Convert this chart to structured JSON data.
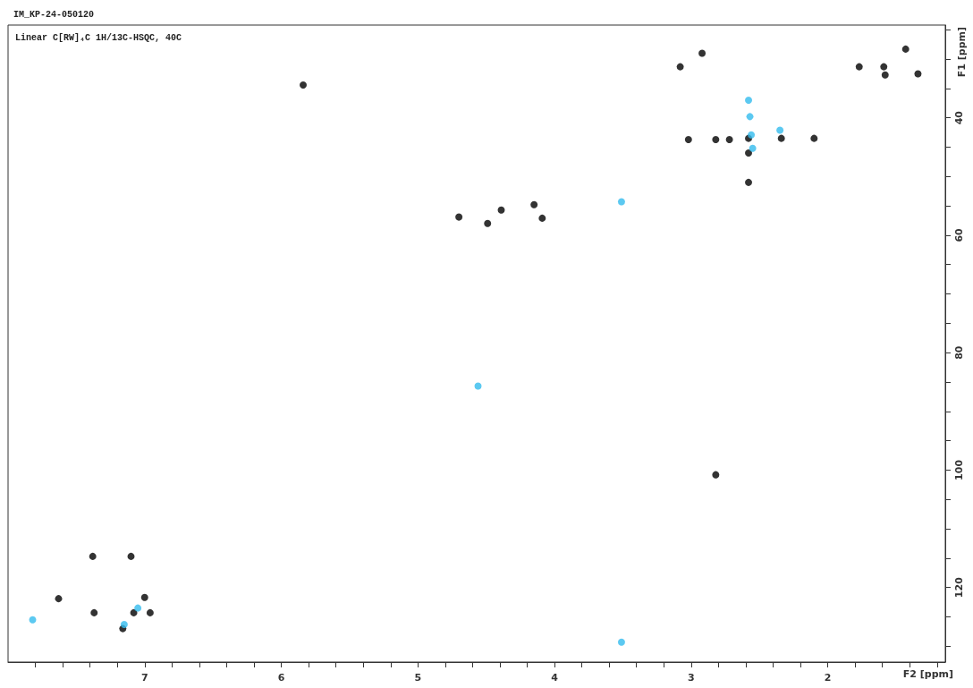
{
  "chart_data": {
    "type": "scatter",
    "title": "IM_KP-24-050120",
    "subtitle": "Linear C[RW]₄C 1H/13C-HSQC, 40C",
    "xlabel": "F2 [ppm]",
    "ylabel": "F1 [ppm]",
    "xlim": [
      8.0,
      1.14
    ],
    "ylim": [
      132.7,
      24.2
    ],
    "xticks": [
      {
        "value": 7.8,
        "label": null
      },
      {
        "value": 7.6,
        "label": null
      },
      {
        "value": 7.4,
        "label": null
      },
      {
        "value": 7.2,
        "label": null
      },
      7,
      {
        "value": 6.8,
        "label": null
      },
      {
        "value": 6.6,
        "label": null
      },
      {
        "value": 6.4,
        "label": null
      },
      {
        "value": 6.2,
        "label": null
      },
      6,
      {
        "value": 5.8,
        "label": null
      },
      {
        "value": 5.6,
        "label": null
      },
      {
        "value": 5.4,
        "label": null
      },
      {
        "value": 5.2,
        "label": null
      },
      5,
      {
        "value": 4.8,
        "label": null
      },
      {
        "value": 4.6,
        "label": null
      },
      {
        "value": 4.4,
        "label": null
      },
      {
        "value": 4.2,
        "label": null
      },
      4,
      {
        "value": 3.8,
        "label": null
      },
      {
        "value": 3.6,
        "label": null
      },
      {
        "value": 3.4,
        "label": null
      },
      {
        "value": 3.2,
        "label": null
      },
      3,
      {
        "value": 2.8,
        "label": null
      },
      {
        "value": 2.6,
        "label": null
      },
      {
        "value": 2.4,
        "label": null
      },
      {
        "value": 2.2,
        "label": null
      },
      2,
      {
        "value": 1.8,
        "label": null
      },
      {
        "value": 1.6,
        "label": null
      },
      {
        "value": 1.4,
        "label": null
      },
      {
        "value": 1.2,
        "label": null
      }
    ],
    "yticks": [
      {
        "value": 25,
        "label": null
      },
      {
        "value": 30,
        "label": null
      },
      {
        "value": 35,
        "label": null
      },
      40,
      {
        "value": 45,
        "label": null
      },
      {
        "value": 50,
        "label": null
      },
      {
        "value": 55,
        "label": null
      },
      60,
      {
        "value": 65,
        "label": null
      },
      {
        "value": 70,
        "label": null
      },
      {
        "value": 75,
        "label": null
      },
      80,
      {
        "value": 85,
        "label": null
      },
      {
        "value": 90,
        "label": null
      },
      {
        "value": 95,
        "label": null
      },
      100,
      {
        "value": 105,
        "label": null
      },
      {
        "value": 110,
        "label": null
      },
      {
        "value": 115,
        "label": null
      },
      120,
      {
        "value": 125,
        "label": null
      },
      {
        "value": 130,
        "label": null
      }
    ],
    "grid": false,
    "marker": "circle",
    "series": [
      {
        "color": "#000000",
        "x": [
          1.43,
          1.58,
          1.34,
          1.59,
          1.77,
          3.08,
          2.92,
          5.84,
          3.02,
          2.82,
          2.72,
          2.58,
          2.58,
          2.58,
          2.34,
          2.1,
          4.7,
          4.39,
          4.49,
          4.15,
          4.09,
          2.82,
          7.38,
          7.1,
          7.63,
          7.0,
          7.08,
          7.37,
          7.16,
          6.96
        ],
        "values": [
          28.3,
          32.7,
          32.5,
          31.3,
          31.3,
          31.3,
          29.0,
          34.4,
          43.7,
          43.7,
          43.7,
          43.5,
          46.0,
          51.0,
          43.5,
          43.5,
          56.9,
          55.7,
          58.0,
          54.8,
          57.1,
          100.8,
          114.7,
          114.7,
          121.9,
          121.7,
          124.3,
          124.3,
          127.0,
          124.3
        ]
      },
      {
        "color": "#33bbee",
        "x": [
          2.58,
          2.57,
          2.56,
          2.55,
          2.35,
          3.51,
          4.56,
          3.51,
          7.82,
          7.05,
          7.15
        ],
        "values": [
          37.0,
          39.8,
          42.9,
          45.2,
          42.1,
          54.3,
          85.7,
          129.3,
          125.5,
          123.5,
          126.3
        ]
      }
    ]
  }
}
